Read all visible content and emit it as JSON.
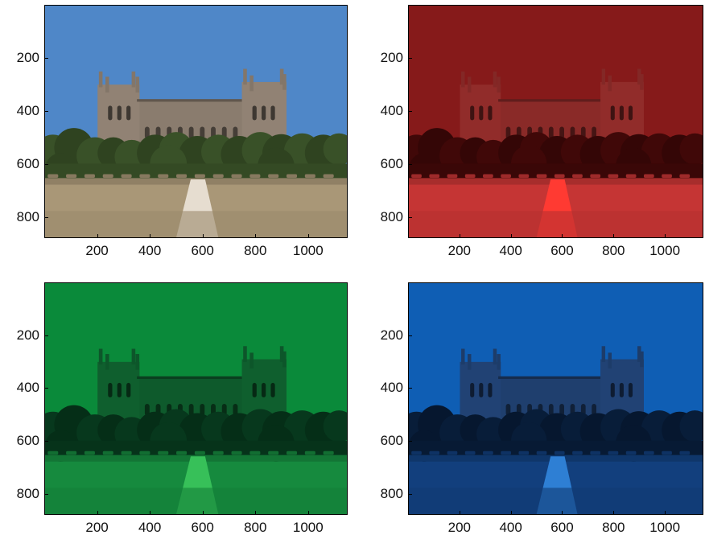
{
  "figure": {
    "axes": {
      "x_ticks": [
        "200",
        "400",
        "600",
        "800",
        "1000"
      ],
      "y_ticks": [
        "200",
        "400",
        "600",
        "800"
      ],
      "x_range": [
        0,
        1150
      ],
      "y_range": [
        0,
        880
      ]
    },
    "panels": [
      {
        "id": "original",
        "channel": "rgb",
        "sky": "#4f87c8",
        "ground": "#a99777",
        "building": "#8a7c6e",
        "trees": "#344a24",
        "path": "#e6ddd0"
      },
      {
        "id": "red",
        "channel": "red",
        "sky": "#861a1a",
        "ground": "#c53534",
        "building": "#8a2a28",
        "trees": "#3a0707",
        "path": "#ff3a32"
      },
      {
        "id": "green",
        "channel": "green",
        "sky": "#0a8a3a",
        "ground": "#168a3e",
        "building": "#0e5a2c",
        "trees": "#06331a",
        "path": "#37c059"
      },
      {
        "id": "blue",
        "channel": "blue",
        "sky": "#0f5eb4",
        "ground": "#123f7d",
        "building": "#1f3f6e",
        "trees": "#071a34",
        "path": "#2e7fd4"
      }
    ]
  }
}
